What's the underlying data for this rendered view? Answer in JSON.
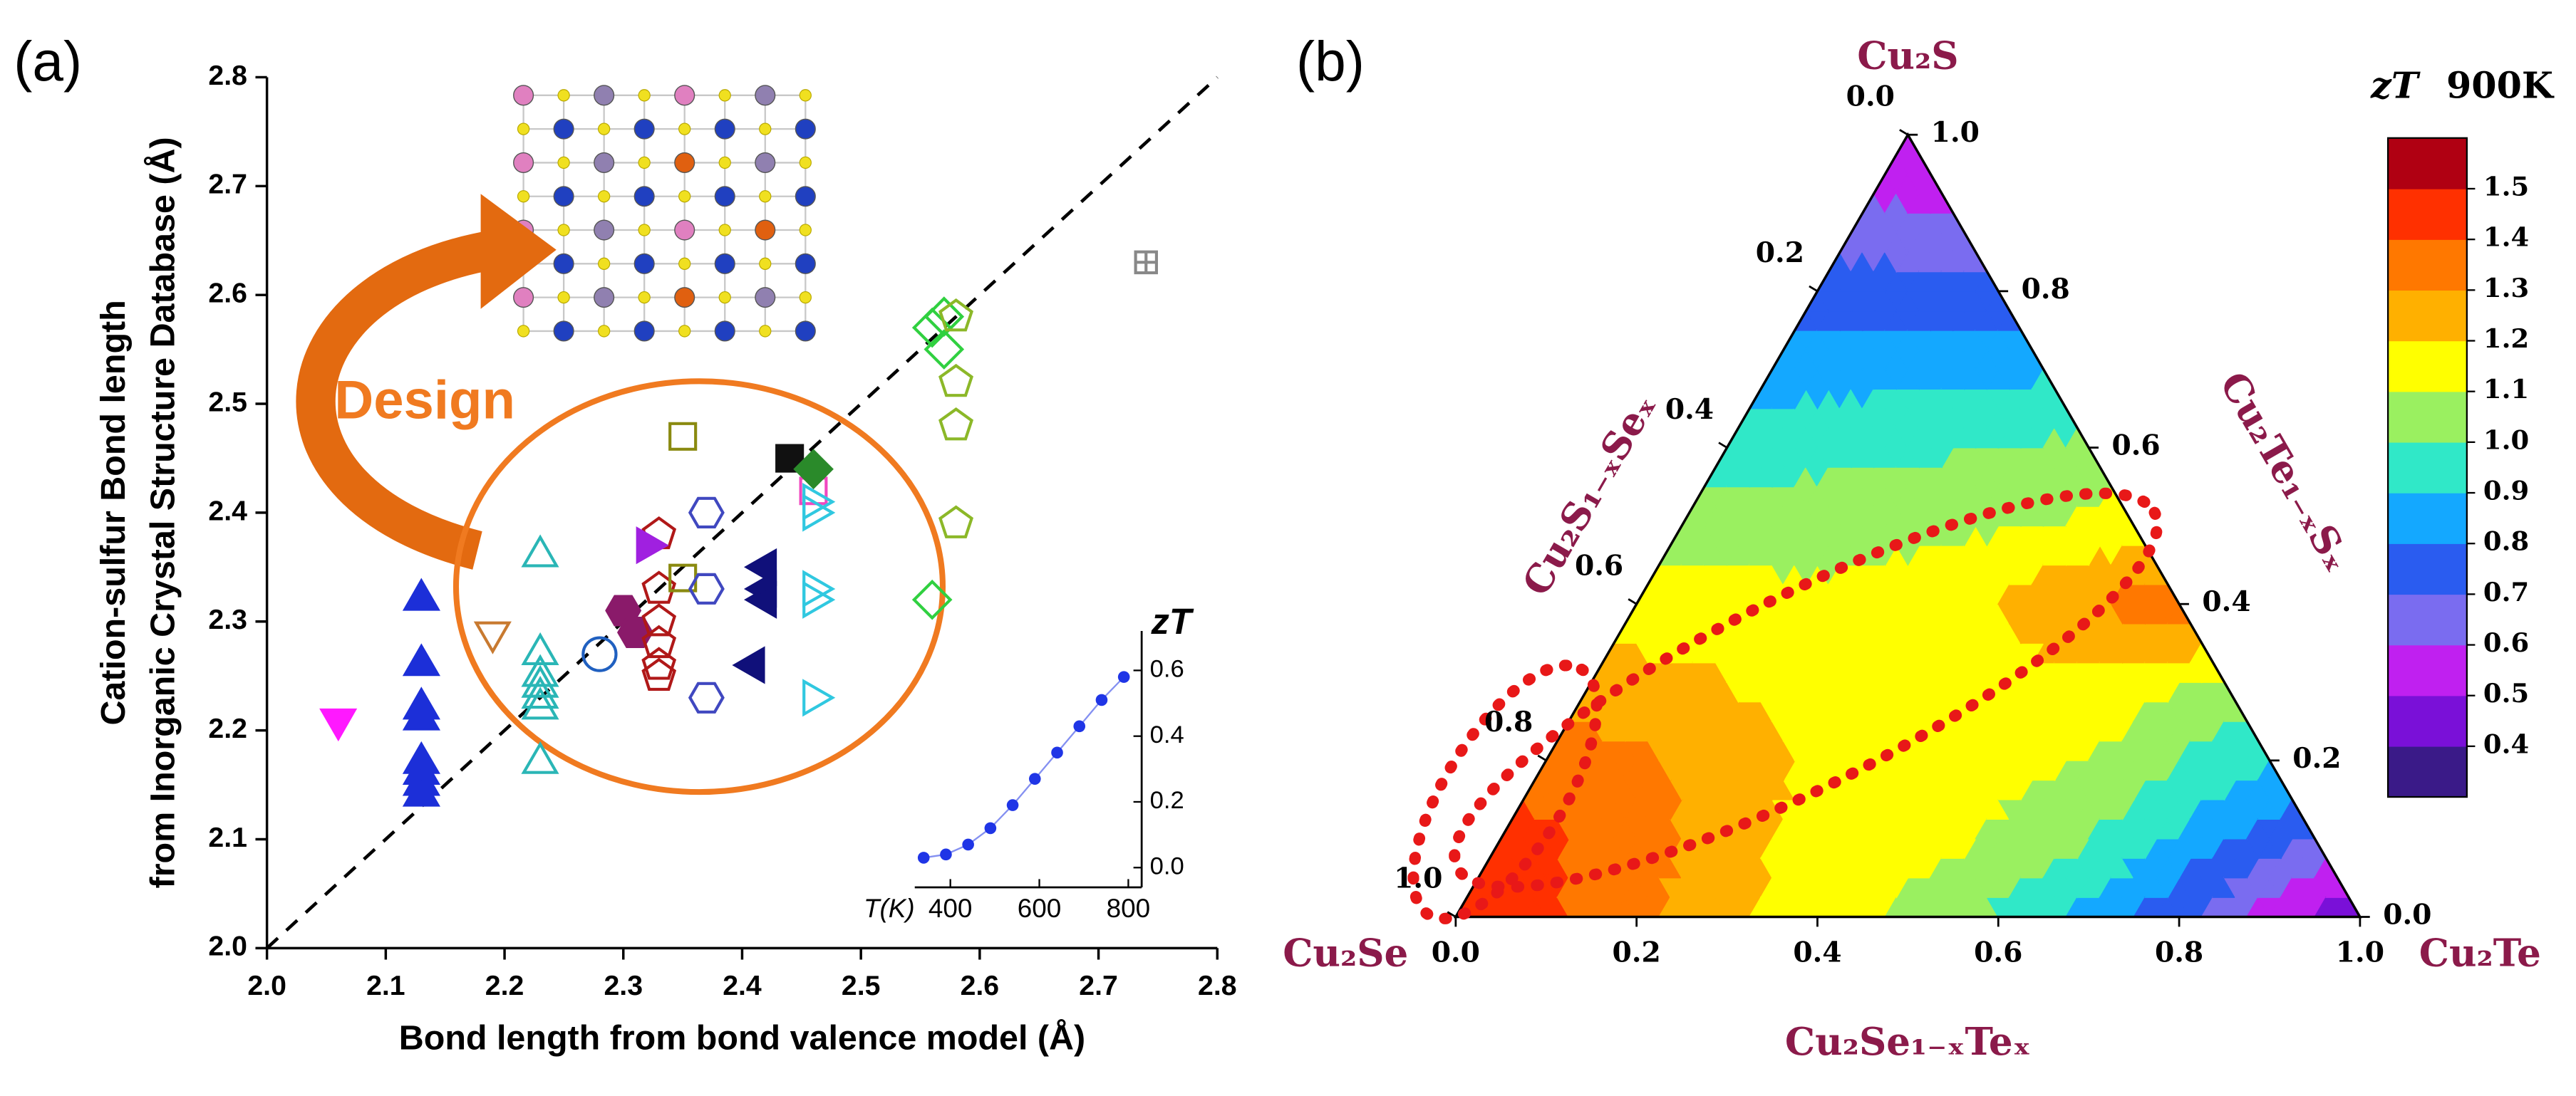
{
  "chart_data": [
    {
      "type": "scatter",
      "panel_label": "(a)",
      "annotation": "Design",
      "xlabel": "Bond length from bond valence model (Å)",
      "ylabel": [
        "Cation-sulfur Bond length",
        "from Inorganic Crystal Structure Database (Å)"
      ],
      "xlim": [
        2,
        2.8
      ],
      "ylim": [
        2,
        2.8
      ],
      "xticks": [
        {
          "value": 2,
          "label": "2.0"
        },
        2.1,
        2.2,
        2.3,
        2.4,
        2.5,
        2.6,
        2.7,
        2.8
      ],
      "yticks": [
        {
          "value": 2,
          "label": "2.0"
        },
        2.1,
        2.2,
        2.3,
        2.4,
        2.5,
        2.6,
        2.7,
        2.8
      ],
      "diagonal": true,
      "series": [
        {
          "marker": "triangle-up",
          "filled": true,
          "color": "#1c2fd8",
          "x": [
            2.13,
            2.13,
            2.13,
            2.13,
            2.13,
            2.13,
            2.13,
            2.13
          ],
          "y": [
            2.32,
            2.26,
            2.22,
            2.21,
            2.17,
            2.16,
            2.15,
            2.14
          ]
        },
        {
          "marker": "triangle-down",
          "filled": true,
          "color": "#ff19ff",
          "x": [
            2.06
          ],
          "y": [
            2.21
          ]
        },
        {
          "marker": "triangle-up",
          "filled": false,
          "color": "#2ab6b6",
          "x": [
            2.23,
            2.23,
            2.23,
            2.23,
            2.23,
            2.23,
            2.23
          ],
          "y": [
            2.36,
            2.27,
            2.25,
            2.24,
            2.23,
            2.22,
            2.17
          ]
        },
        {
          "marker": "triangle-down",
          "filled": false,
          "color": "#c87a30",
          "x": [
            2.19
          ],
          "y": [
            2.29
          ]
        },
        {
          "marker": "circle",
          "filled": false,
          "color": "#2060c0",
          "x": [
            2.28
          ],
          "y": [
            2.27
          ]
        },
        {
          "marker": "hexagon",
          "filled": true,
          "color": "#8a1a6a",
          "x": [
            2.3,
            2.31
          ],
          "y": [
            2.31,
            2.29
          ]
        },
        {
          "marker": "pentagon",
          "filled": false,
          "color": "#b01818",
          "x": [
            2.33,
            2.33,
            2.33,
            2.33,
            2.33,
            2.33
          ],
          "y": [
            2.38,
            2.33,
            2.3,
            2.28,
            2.26,
            2.25
          ]
        },
        {
          "marker": "triangle-right",
          "filled": true,
          "color": "#a020e0",
          "x": [
            2.32
          ],
          "y": [
            2.37
          ]
        },
        {
          "marker": "square",
          "filled": false,
          "color": "#8a8a10",
          "x": [
            2.35,
            2.35
          ],
          "y": [
            2.47,
            2.34
          ]
        },
        {
          "marker": "hexagon",
          "filled": false,
          "color": "#4048c0",
          "x": [
            2.37,
            2.37,
            2.37
          ],
          "y": [
            2.4,
            2.33,
            2.23
          ]
        },
        {
          "marker": "triangle-left",
          "filled": true,
          "color": "#10107a",
          "x": [
            2.42,
            2.42,
            2.42,
            2.41
          ],
          "y": [
            2.35,
            2.33,
            2.32,
            2.26
          ]
        },
        {
          "marker": "square",
          "filled": true,
          "color": "#111111",
          "x": [
            2.44
          ],
          "y": [
            2.45
          ]
        },
        {
          "marker": "square",
          "filled": false,
          "color": "#f048c0",
          "x": [
            2.46
          ],
          "y": [
            2.42
          ]
        },
        {
          "marker": "diamond",
          "filled": true,
          "color": "#2a8a2a",
          "x": [
            2.46
          ],
          "y": [
            2.44
          ]
        },
        {
          "marker": "triangle-right",
          "filled": false,
          "color": "#30c8e0",
          "x": [
            2.46,
            2.46,
            2.46,
            2.46,
            2.46
          ],
          "y": [
            2.41,
            2.4,
            2.33,
            2.32,
            2.23
          ]
        },
        {
          "marker": "diamond",
          "filled": false,
          "color": "#30d040",
          "x": [
            2.56,
            2.57,
            2.57,
            2.56
          ],
          "y": [
            2.57,
            2.55,
            2.58,
            2.32
          ]
        },
        {
          "marker": "pentagon",
          "filled": false,
          "color": "#8cb828",
          "x": [
            2.58,
            2.58,
            2.58,
            2.58
          ],
          "y": [
            2.58,
            2.52,
            2.48,
            2.39
          ]
        },
        {
          "marker": "square-plus",
          "filled": false,
          "color": "#888888",
          "x": [
            2.74
          ],
          "y": [
            2.63
          ]
        }
      ]
    },
    {
      "type": "line",
      "xlabel": "T(K)",
      "ylabel": "zT",
      "color": "#1f35e6",
      "x": [
        340,
        390,
        440,
        490,
        540,
        590,
        640,
        690,
        740,
        790
      ],
      "values": [
        0.03,
        0.04,
        0.07,
        0.12,
        0.19,
        0.27,
        0.35,
        0.43,
        0.51,
        0.58
      ],
      "xlim": [
        320,
        830
      ],
      "ylim": [
        -0.06,
        0.72
      ],
      "xticks": [
        400,
        600,
        800
      ],
      "yticks": [
        {
          "value": 0,
          "label": "0.0"
        },
        0.2,
        0.4,
        0.6
      ]
    },
    {
      "type": "ternary_contour",
      "panel_label": "(b)",
      "vertices": {
        "top": "Cu₂S",
        "left": "Cu₂Se",
        "right": "Cu₂Te"
      },
      "axis_labels": {
        "bottom": "Cu₂Se₁₋ₓTeₓ",
        "left": "Cu₂S₁₋ₓSeₓ",
        "right": "Cu₂Te₁₋ₓSₓ"
      },
      "bottom_ticks": [
        {
          "value": 0,
          "label": "0.0"
        },
        0.2,
        0.4,
        0.6,
        0.8,
        {
          "value": 1,
          "label": "1.0"
        }
      ],
      "left_ticks": [
        {
          "value": 0,
          "label": "0.0"
        },
        0.2,
        0.4,
        0.6,
        0.8,
        {
          "value": 1,
          "label": "1.0"
        }
      ],
      "right_ticks": [
        {
          "value": 0,
          "label": "0.0"
        },
        0.2,
        0.4,
        0.6,
        0.8,
        {
          "value": 1,
          "label": "1.0"
        }
      ],
      "z": [
        [
          1.5,
          1.42,
          1.32,
          1.22,
          1.15,
          1.08,
          0.98,
          0.87,
          0.72,
          0.56,
          0.4
        ],
        [
          1.45,
          1.38,
          1.3,
          1.2,
          1.15,
          1.12,
          1.05,
          0.95,
          0.82,
          0.7
        ],
        [
          1.35,
          1.32,
          1.25,
          1.18,
          1.15,
          1.14,
          1.1,
          1.0,
          0.9
        ],
        [
          1.25,
          1.22,
          1.18,
          1.16,
          1.16,
          1.18,
          1.15,
          1.08
        ],
        [
          1.15,
          1.14,
          1.13,
          1.15,
          1.2,
          1.3,
          1.38
        ],
        [
          1.05,
          1.05,
          1.06,
          1.08,
          1.1,
          1.15
        ],
        [
          0.95,
          0.97,
          0.98,
          1.0,
          1.02
        ],
        [
          0.85,
          0.86,
          0.87,
          0.88
        ],
        [
          0.75,
          0.74,
          0.73
        ],
        [
          0.62,
          0.6
        ],
        [
          0.48
        ]
      ],
      "colorbar_label": "zT",
      "colorbar_unit": "900K",
      "levels": [
        0.4,
        0.5,
        0.6,
        0.7,
        0.8,
        0.9,
        {
          "value": 1,
          "label": "1.0"
        },
        1.1,
        1.2,
        1.3,
        1.4,
        1.5
      ],
      "colors": [
        "#3a1a88",
        "#7a10d8",
        "#c020f0",
        "#7a6cf0",
        "#2a5cf0",
        "#14a8ff",
        "#30e8c8",
        "#9af060",
        "#ffff00",
        "#ffb000",
        "#ff7800",
        "#ff3000",
        "#b00012"
      ]
    }
  ]
}
